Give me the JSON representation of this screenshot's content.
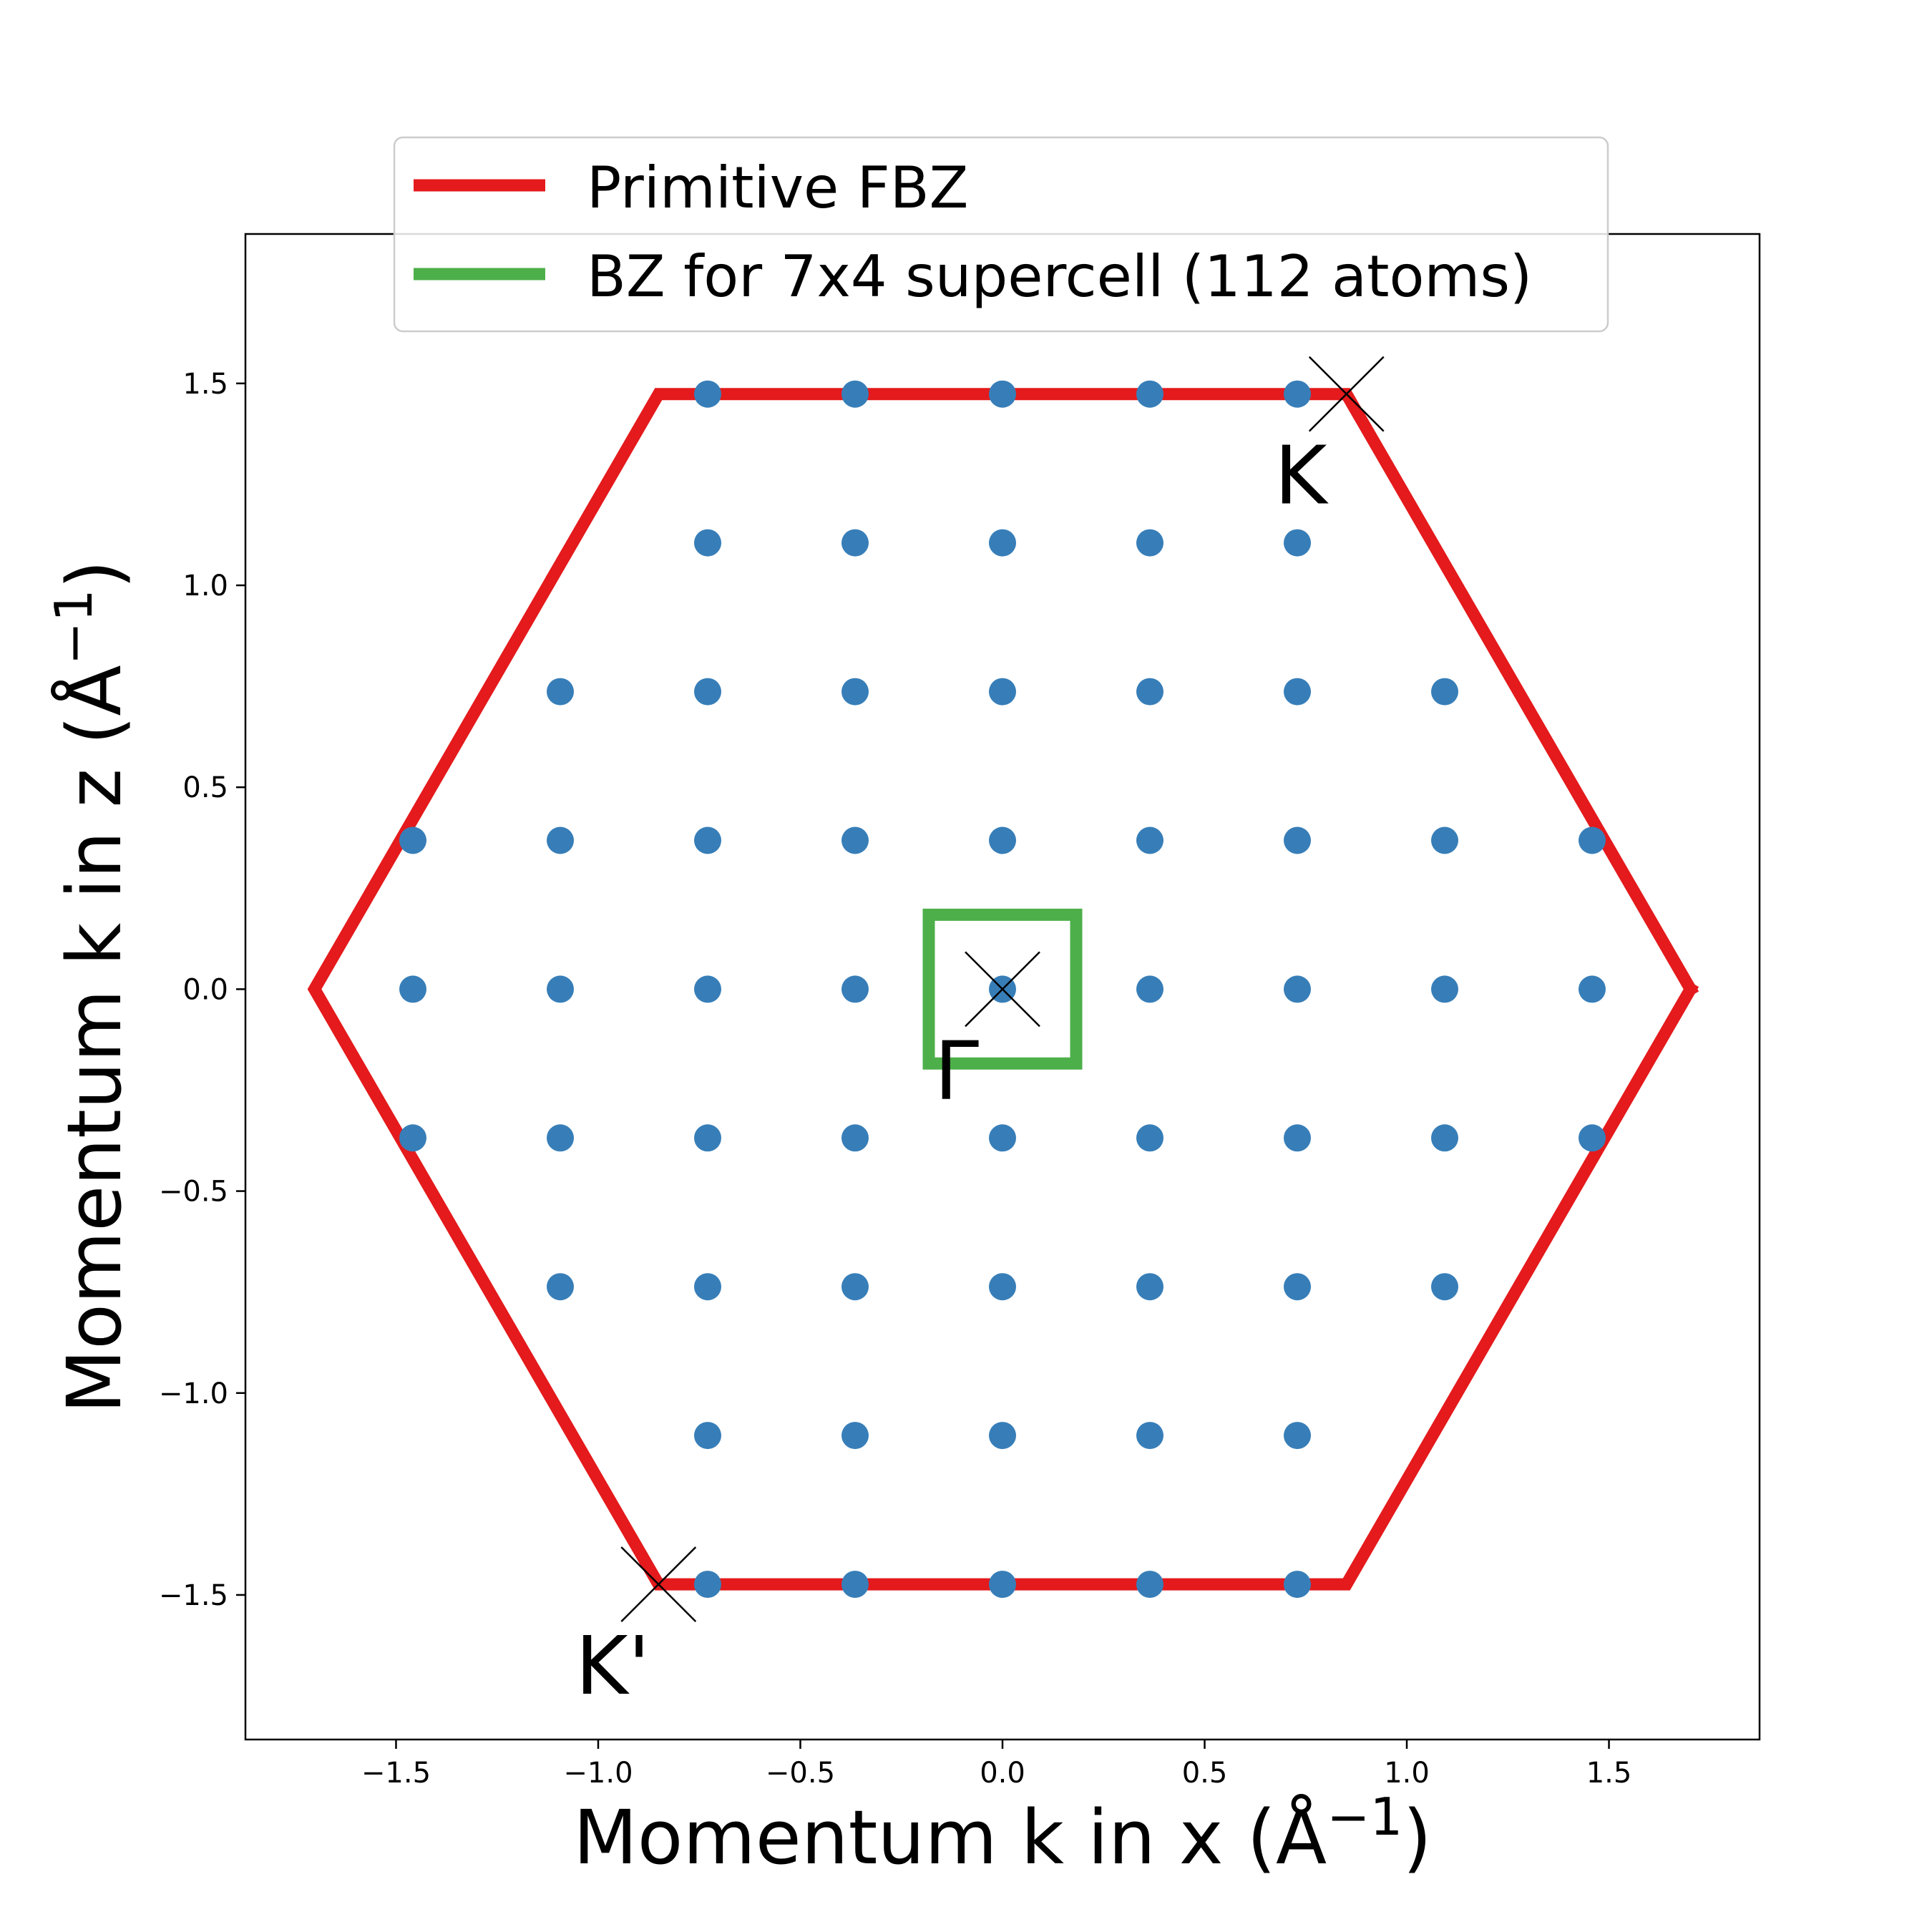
{
  "chart_data": {
    "type": "scatter",
    "xlabel": "Momentum k in x (Å",
    "ylabel": "Momentum k in z (Å",
    "axis_unit_exponent": "−1",
    "axis_unit_close": ")",
    "xlim": [
      -1.8725,
      1.8725
    ],
    "ylim": [
      -1.858,
      1.87
    ],
    "xticks": [
      -1.5,
      -1.0,
      -0.5,
      0.0,
      0.5,
      1.0,
      1.5
    ],
    "xtick_labels": [
      "−1.5",
      "−1.0",
      "−0.5",
      "0.0",
      "0.5",
      "1.0",
      "1.5"
    ],
    "yticks": [
      -1.5,
      -1.0,
      -0.5,
      0.0,
      0.5,
      1.0,
      1.5
    ],
    "ytick_labels": [
      "−1.5",
      "−1.0",
      "−0.5",
      "0.0",
      "0.5",
      "1.0",
      "1.5"
    ],
    "grid": false,
    "legend_position": "top-center",
    "series": [
      {
        "name": "Primitive FBZ",
        "kind": "line",
        "color": "#e41a1c",
        "points": [
          [
            1.7017,
            0
          ],
          [
            0.8508,
            1.4737
          ],
          [
            -0.8508,
            1.4737
          ],
          [
            -1.7017,
            0
          ],
          [
            -0.8508,
            -1.4737
          ],
          [
            0.8508,
            -1.4737
          ],
          [
            1.7017,
            0
          ]
        ]
      },
      {
        "name": "BZ for 7x4 supercell (112 atoms)",
        "kind": "line",
        "color": "#4daf4a",
        "points": [
          [
            -0.1823,
            -0.1842
          ],
          [
            0.1823,
            -0.1842
          ],
          [
            0.1823,
            0.1842
          ],
          [
            -0.1823,
            0.1842
          ],
          [
            -0.1823,
            -0.1842
          ]
        ]
      }
    ],
    "kpoints": {
      "color": "#377eb8",
      "step_x": 0.3646,
      "step_z": 0.3684,
      "rows": [
        {
          "j": 4,
          "i": [
            -2,
            -1,
            0,
            1,
            2
          ]
        },
        {
          "j": 3,
          "i": [
            -2,
            -1,
            0,
            1,
            2
          ]
        },
        {
          "j": 2,
          "i": [
            -3,
            -2,
            -1,
            0,
            1,
            2,
            3
          ]
        },
        {
          "j": 1,
          "i": [
            -4,
            -3,
            -2,
            -1,
            0,
            1,
            2,
            3,
            4
          ]
        },
        {
          "j": 0,
          "i": [
            -4,
            -3,
            -2,
            -1,
            0,
            1,
            2,
            3,
            4
          ]
        },
        {
          "j": -1,
          "i": [
            -4,
            -3,
            -2,
            -1,
            0,
            1,
            2,
            3,
            4
          ]
        },
        {
          "j": -2,
          "i": [
            -3,
            -2,
            -1,
            0,
            1,
            2,
            3
          ]
        },
        {
          "j": -3,
          "i": [
            -2,
            -1,
            0,
            1,
            2
          ]
        },
        {
          "j": -4,
          "i": [
            -2,
            -1,
            0,
            1,
            2
          ]
        }
      ]
    },
    "special_points": [
      {
        "label": "K",
        "x": 0.8508,
        "y": 1.4737
      },
      {
        "label": "Γ",
        "x": 0.0,
        "y": 0.0
      },
      {
        "label": "K'",
        "x": -0.8508,
        "y": -1.4737
      }
    ]
  }
}
